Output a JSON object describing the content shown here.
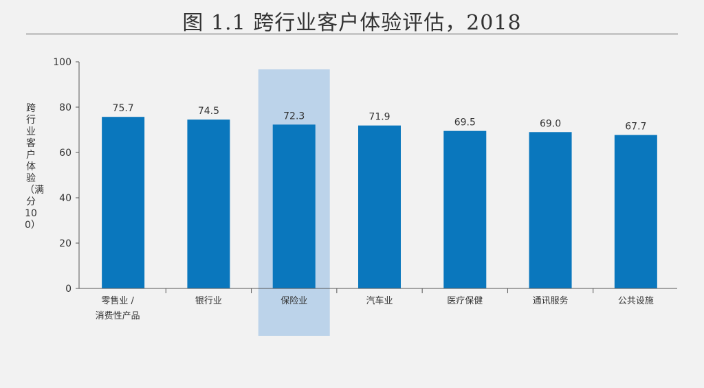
{
  "chart_data": {
    "type": "bar",
    "title": "图 1.1 跨行业客户体验评估，2018",
    "ylabel": "跨行业客户体验（满分 100）",
    "xlabel": "",
    "ylim": [
      0,
      100
    ],
    "yticks": [
      "0",
      "20",
      "40",
      "60",
      "80",
      "100"
    ],
    "categories": [
      [
        "零售业 /",
        "消费性产品"
      ],
      [
        "银行业"
      ],
      [
        "保险业"
      ],
      [
        "汽车业"
      ],
      [
        "医疗保健"
      ],
      [
        "通讯服务"
      ],
      [
        "公共设施"
      ]
    ],
    "values": [
      75.7,
      74.5,
      72.3,
      71.9,
      69.5,
      69.0,
      67.7
    ],
    "value_labels": [
      "75.7",
      "74.5",
      "72.3",
      "71.9",
      "69.5",
      "69.0",
      "67.7"
    ],
    "highlighted_category_index": 2,
    "grid": false,
    "colors": {
      "bar": "#0a77bd",
      "highlight": "#bcd3ea",
      "axis": "#555555",
      "text": "#333333"
    }
  }
}
